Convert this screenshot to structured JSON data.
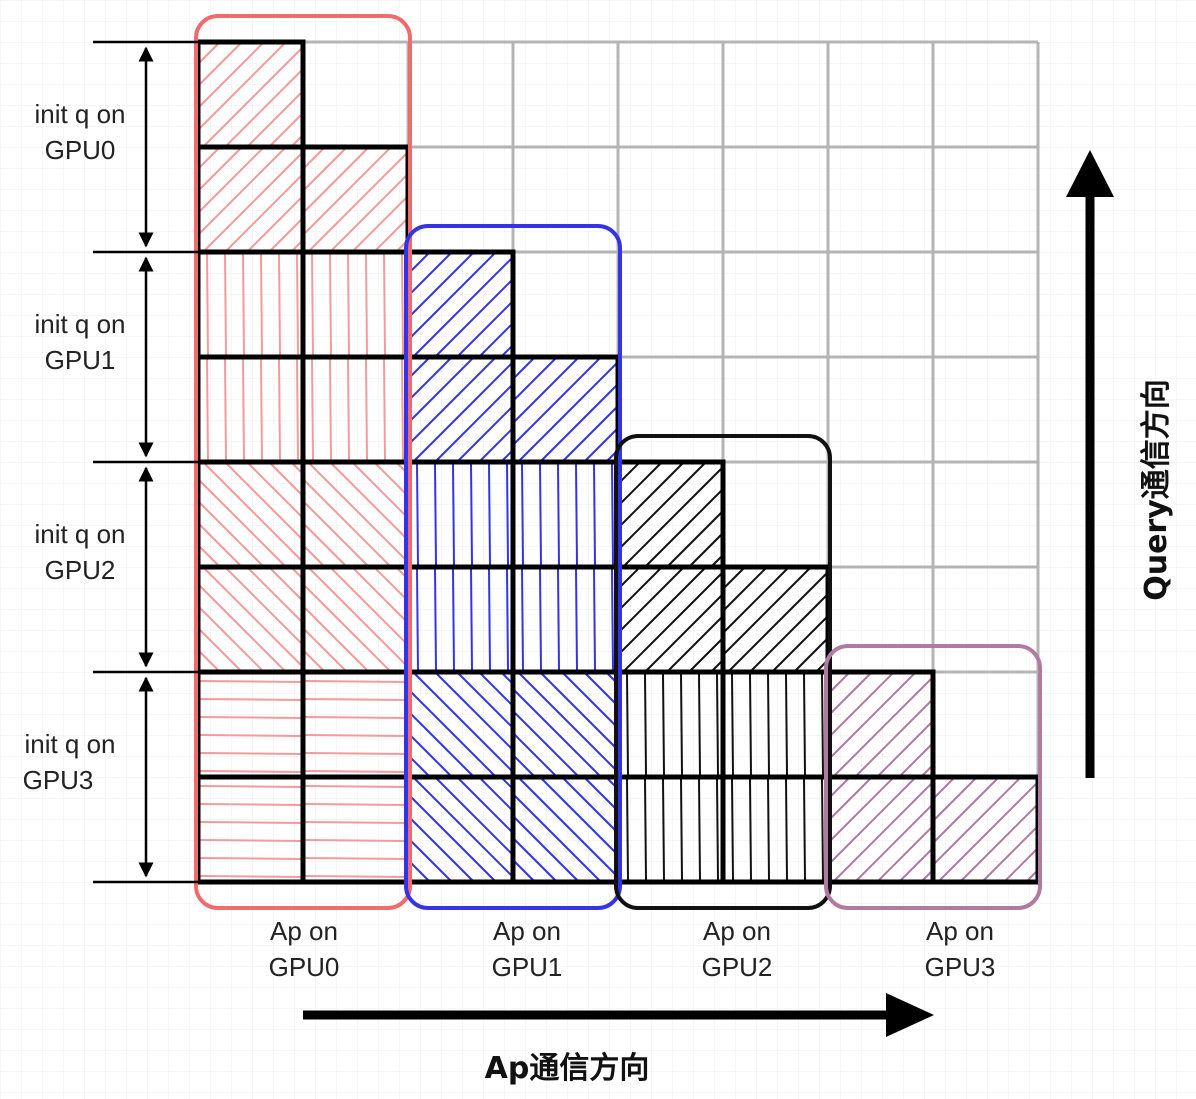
{
  "diagram": {
    "grid_size": 8,
    "row_labels": [
      {
        "line1": "init q on",
        "line2": "GPU0",
        "rows": [
          0,
          1
        ]
      },
      {
        "line1": "init q on",
        "line2": "GPU1",
        "rows": [
          2,
          3
        ]
      },
      {
        "line1": "init q on",
        "line2": "GPU2",
        "rows": [
          4,
          5
        ]
      },
      {
        "line1": "init q on",
        "line2": "GPU3",
        "rows": [
          6,
          7
        ]
      }
    ],
    "groups": [
      {
        "line1": "Ap on",
        "line2": "GPU0",
        "color": "#f06b6b",
        "cols": [
          0,
          1
        ]
      },
      {
        "line1": "Ap on",
        "line2": "GPU1",
        "color": "#3434e6",
        "cols": [
          2,
          3
        ]
      },
      {
        "line1": "Ap on",
        "line2": "GPU2",
        "color": "#111111",
        "cols": [
          4,
          5
        ]
      },
      {
        "line1": "Ap on",
        "line2": "GPU3",
        "color": "#b07aa1",
        "cols": [
          6,
          7
        ]
      }
    ],
    "hatch_colors": [
      "#f59a9a",
      "#3434e6",
      "#111111",
      "#b07aa1"
    ],
    "x_axis_title": "Ap通信方向",
    "y_axis_title": "Query通信方向"
  }
}
